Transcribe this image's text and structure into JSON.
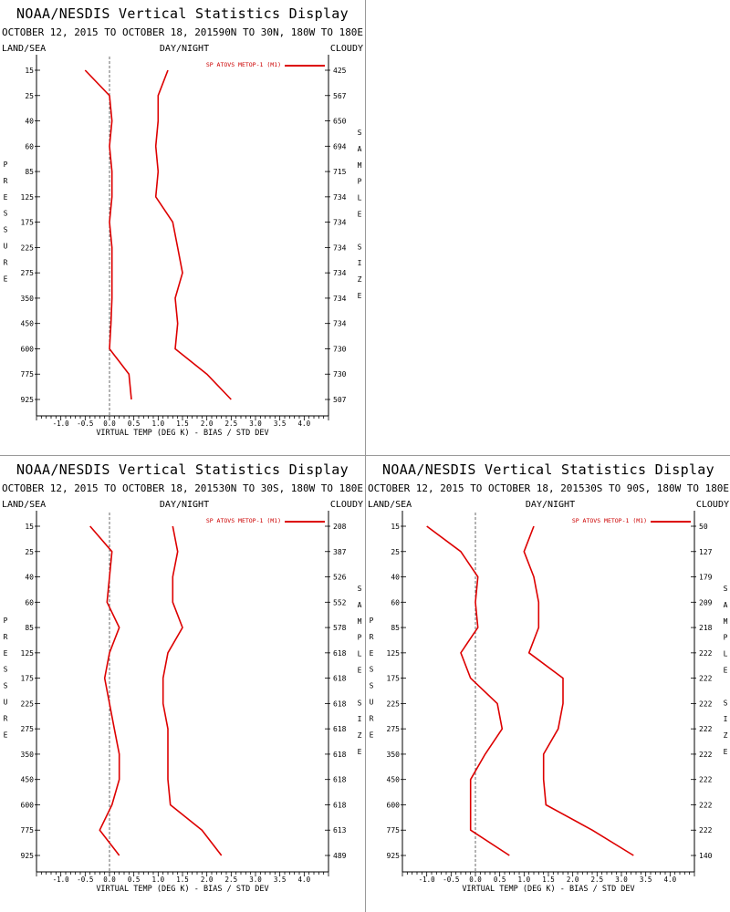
{
  "chart_data": [
    {
      "type": "line",
      "title": "NOAA/NESDIS Vertical Statistics Display",
      "subtitle": "OCTOBER 12, 2015 TO OCTOBER 18, 2015",
      "region": "90N TO 30N, 180W TO 180E",
      "surface_label": "LAND/SEA",
      "time_label": "DAY/NIGHT",
      "cloud_label": "CLOUDY",
      "ylabel": "PRESSURE",
      "y2label": "SAMPLE SIZE",
      "xlabel": "VIRTUAL TEMP (DEG K) - BIAS / STD DEV",
      "legend": "SP ATOVS METOP-1 (M1)",
      "xlim": [
        -1.5,
        4.5
      ],
      "xticks": [
        "-1.0",
        "-0.5",
        "0.0",
        "0.5",
        "1.0",
        "1.5",
        "2.0",
        "2.5",
        "3.0",
        "3.5",
        "4.0"
      ],
      "pressure_levels": [
        "15",
        "25",
        "40",
        "60",
        "85",
        "125",
        "175",
        "225",
        "275",
        "350",
        "450",
        "600",
        "775",
        "925"
      ],
      "sample_size": [
        "425",
        "567",
        "650",
        "694",
        "715",
        "734",
        "734",
        "734",
        "734",
        "734",
        "734",
        "730",
        "730",
        "507"
      ],
      "series": [
        {
          "values": [
            -0.5,
            0.0,
            0.05,
            0.0,
            0.05,
            0.05,
            0.0,
            0.05,
            0.05,
            0.05,
            0.03,
            0.0,
            0.4,
            0.45
          ]
        },
        {
          "values": [
            1.2,
            1.0,
            1.0,
            0.95,
            1.0,
            0.95,
            1.3,
            1.4,
            1.5,
            1.35,
            1.4,
            1.35,
            2.0,
            2.5
          ]
        }
      ]
    },
    {
      "type": "line",
      "title": "NOAA/NESDIS Vertical Statistics Display",
      "subtitle": "OCTOBER 12, 2015 TO OCTOBER 18, 2015",
      "region": "30N TO 30S, 180W TO 180E",
      "surface_label": "LAND/SEA",
      "time_label": "DAY/NIGHT",
      "cloud_label": "CLOUDY",
      "ylabel": "PRESSURE",
      "y2label": "SAMPLE SIZE",
      "xlabel": "VIRTUAL TEMP (DEG K) - BIAS / STD DEV",
      "legend": "SP ATOVS METOP-1 (M1)",
      "xlim": [
        -1.5,
        4.5
      ],
      "xticks": [
        "-1.0",
        "-0.5",
        "0.0",
        "0.5",
        "1.0",
        "1.5",
        "2.0",
        "2.5",
        "3.0",
        "3.5",
        "4.0"
      ],
      "pressure_levels": [
        "15",
        "25",
        "40",
        "60",
        "85",
        "125",
        "175",
        "225",
        "275",
        "350",
        "450",
        "600",
        "775",
        "925"
      ],
      "sample_size": [
        "208",
        "387",
        "526",
        "552",
        "578",
        "618",
        "618",
        "618",
        "618",
        "618",
        "618",
        "618",
        "613",
        "489"
      ],
      "series": [
        {
          "values": [
            -0.4,
            0.05,
            0.0,
            -0.05,
            0.2,
            0.0,
            -0.1,
            0.0,
            0.1,
            0.2,
            0.2,
            0.05,
            -0.2,
            0.2
          ]
        },
        {
          "values": [
            1.3,
            1.4,
            1.3,
            1.3,
            1.5,
            1.2,
            1.1,
            1.1,
            1.2,
            1.2,
            1.2,
            1.25,
            1.9,
            2.3
          ]
        }
      ]
    },
    {
      "type": "line",
      "title": "NOAA/NESDIS Vertical Statistics Display",
      "subtitle": "OCTOBER 12, 2015 TO OCTOBER 18, 2015",
      "region": "30S TO 90S, 180W TO 180E",
      "surface_label": "LAND/SEA",
      "time_label": "DAY/NIGHT",
      "cloud_label": "CLOUDY",
      "ylabel": "PRESSURE",
      "y2label": "SAMPLE SIZE",
      "xlabel": "VIRTUAL TEMP (DEG K) - BIAS / STD DEV",
      "legend": "SP ATOVS METOP-1 (M1)",
      "xlim": [
        -1.5,
        4.5
      ],
      "xticks": [
        "-1.0",
        "-0.5",
        "0.0",
        "0.5",
        "1.0",
        "1.5",
        "2.0",
        "2.5",
        "3.0",
        "3.5",
        "4.0"
      ],
      "pressure_levels": [
        "15",
        "25",
        "40",
        "60",
        "85",
        "125",
        "175",
        "225",
        "275",
        "350",
        "450",
        "600",
        "775",
        "925"
      ],
      "sample_size": [
        "50",
        "127",
        "179",
        "209",
        "218",
        "222",
        "222",
        "222",
        "222",
        "222",
        "222",
        "222",
        "222",
        "140"
      ],
      "series": [
        {
          "values": [
            -1.0,
            -0.3,
            0.05,
            0.0,
            0.05,
            -0.3,
            -0.1,
            0.45,
            0.55,
            0.2,
            -0.1,
            -0.1,
            -0.1,
            0.7
          ]
        },
        {
          "values": [
            1.2,
            1.0,
            1.2,
            1.3,
            1.3,
            1.1,
            1.8,
            1.8,
            1.7,
            1.4,
            1.4,
            1.45,
            2.4,
            3.25
          ]
        }
      ]
    }
  ]
}
